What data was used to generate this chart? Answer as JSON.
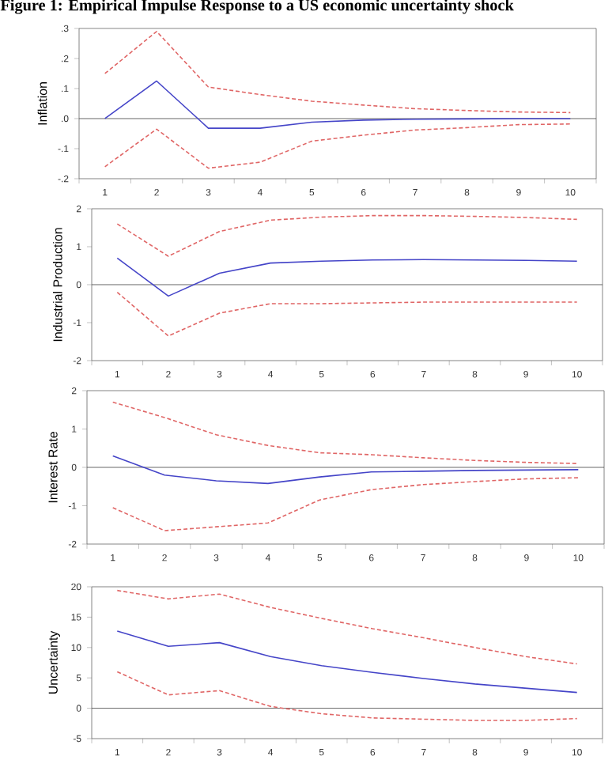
{
  "chart_data": [
    {
      "type": "line",
      "title": "Figure 1: Empirical Impulse Response to a US economic uncertainty shock",
      "ylabel": "Inflation",
      "categories": [
        "1",
        "2",
        "3",
        "4",
        "5",
        "6",
        "7",
        "8",
        "9",
        "10"
      ],
      "series": [
        {
          "color": "#4545c8",
          "line_style": "solid",
          "values": [
            0,
            0.125,
            -0.032,
            -0.032,
            -0.012,
            -0.005,
            -0.002,
            -0.001,
            0,
            0
          ]
        },
        {
          "color": "#e06666",
          "line_style": "dashed",
          "values": [
            0.15,
            0.29,
            0.105,
            0.08,
            0.058,
            0.045,
            0.033,
            0.027,
            0.022,
            0.02
          ]
        },
        {
          "color": "#e06666",
          "line_style": "dashed",
          "values": [
            -0.16,
            -0.035,
            -0.165,
            -0.145,
            -0.075,
            -0.055,
            -0.038,
            -0.03,
            -0.02,
            -0.018
          ]
        }
      ],
      "ylim": [
        -0.2,
        0.3
      ],
      "yticks": [
        {
          "value": -0.2,
          "label": "-.2"
        },
        {
          "value": -0.1,
          "label": "-.1"
        },
        {
          "value": 0,
          "label": ".0"
        },
        {
          "value": 0.1,
          "label": ".1"
        },
        {
          "value": 0.2,
          "label": ".2"
        },
        {
          "value": 0.3,
          "label": ".3"
        }
      ],
      "ref_lines": [
        {
          "axis": "y",
          "value": 0,
          "color": "#404040"
        }
      ]
    },
    {
      "type": "line",
      "ylabel": "Industrial Production",
      "categories": [
        "1",
        "2",
        "3",
        "4",
        "5",
        "6",
        "7",
        "8",
        "9",
        "10"
      ],
      "series": [
        {
          "color": "#4545c8",
          "line_style": "solid",
          "values": [
            0.7,
            -0.3,
            0.3,
            0.57,
            0.62,
            0.65,
            0.66,
            0.65,
            0.64,
            0.62
          ]
        },
        {
          "color": "#e06666",
          "line_style": "dashed",
          "values": [
            1.6,
            0.75,
            1.4,
            1.7,
            1.78,
            1.82,
            1.82,
            1.8,
            1.77,
            1.72
          ]
        },
        {
          "color": "#e06666",
          "line_style": "dashed",
          "values": [
            -0.2,
            -1.35,
            -0.75,
            -0.5,
            -0.5,
            -0.48,
            -0.46,
            -0.46,
            -0.46,
            -0.46
          ]
        }
      ],
      "ylim": [
        -2,
        2
      ],
      "yticks": [
        -2,
        -1,
        0,
        1,
        2
      ],
      "ref_lines": [
        {
          "axis": "y",
          "value": 0,
          "color": "#404040"
        }
      ]
    },
    {
      "type": "line",
      "ylabel": "Interest Rate",
      "categories": [
        "1",
        "2",
        "3",
        "4",
        "5",
        "6",
        "7",
        "8",
        "9",
        "10"
      ],
      "series": [
        {
          "color": "#4545c8",
          "line_style": "solid",
          "values": [
            0.3,
            -0.2,
            -0.35,
            -0.42,
            -0.25,
            -0.12,
            -0.1,
            -0.08,
            -0.07,
            -0.06
          ]
        },
        {
          "color": "#e06666",
          "line_style": "dashed",
          "values": [
            1.7,
            1.3,
            0.85,
            0.57,
            0.38,
            0.33,
            0.25,
            0.18,
            0.13,
            0.1
          ]
        },
        {
          "color": "#e06666",
          "line_style": "dashed",
          "values": [
            -1.05,
            -1.65,
            -1.55,
            -1.45,
            -0.85,
            -0.58,
            -0.45,
            -0.37,
            -0.3,
            -0.27
          ]
        }
      ],
      "ylim": [
        -2,
        2
      ],
      "yticks": [
        -2,
        -1,
        0,
        1,
        2
      ],
      "ref_lines": [
        {
          "axis": "y",
          "value": 0,
          "color": "#404040"
        }
      ]
    },
    {
      "type": "line",
      "ylabel": "Uncertainty",
      "categories": [
        "1",
        "2",
        "3",
        "4",
        "5",
        "6",
        "7",
        "8",
        "9",
        "10"
      ],
      "series": [
        {
          "color": "#4545c8",
          "line_style": "solid",
          "values": [
            12.7,
            10.2,
            10.8,
            8.5,
            7,
            5.9,
            4.9,
            4,
            3.3,
            2.6
          ]
        },
        {
          "color": "#e06666",
          "line_style": "dashed",
          "values": [
            19.4,
            18,
            18.8,
            16.6,
            14.8,
            13.1,
            11.6,
            10,
            8.5,
            7.3
          ]
        },
        {
          "color": "#e06666",
          "line_style": "dashed",
          "values": [
            6,
            2.2,
            2.9,
            0.3,
            -0.9,
            -1.6,
            -1.8,
            -2,
            -2,
            -1.7
          ]
        }
      ],
      "ylim": [
        -5,
        20
      ],
      "yticks": [
        -5,
        0,
        5,
        10,
        15,
        20
      ],
      "ref_lines": [
        {
          "axis": "y",
          "value": 0,
          "color": "#404040"
        }
      ]
    }
  ]
}
